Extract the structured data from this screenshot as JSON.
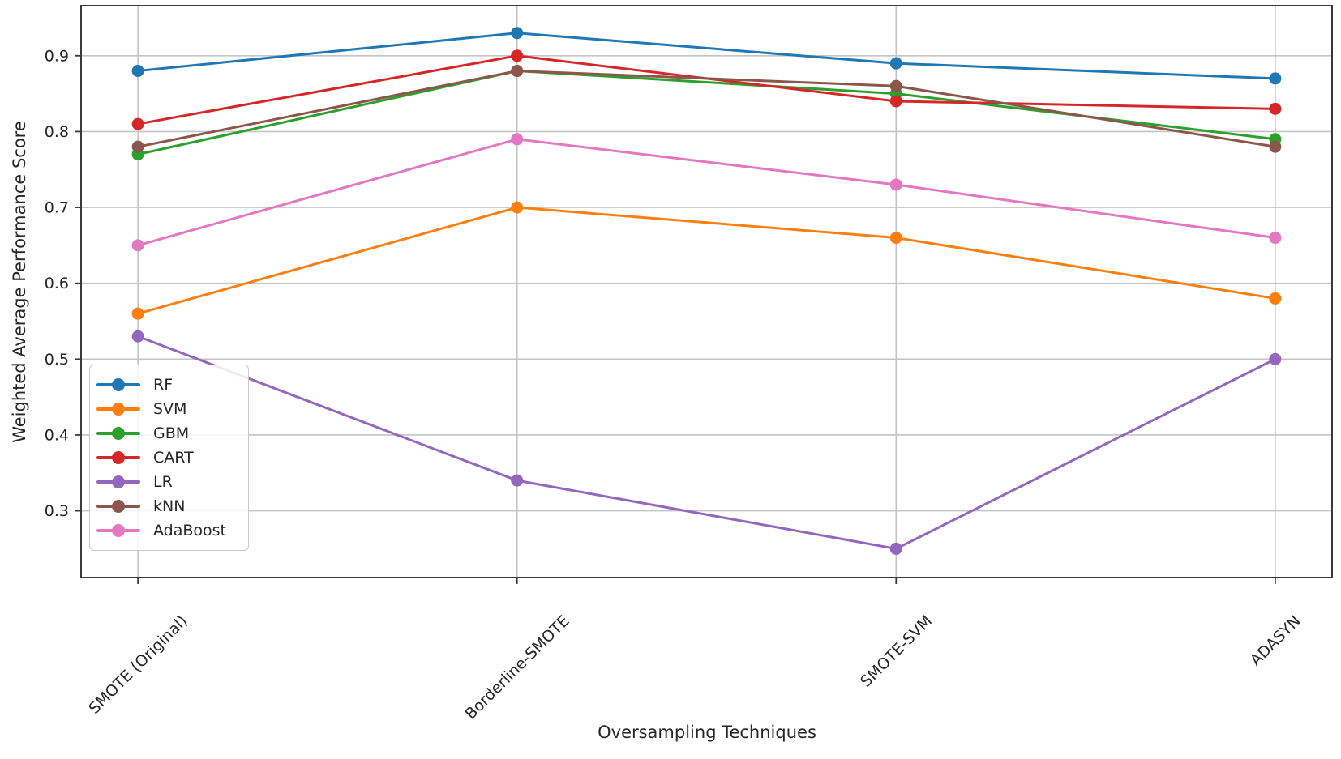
{
  "figure": {
    "background": "#ffffff",
    "text_color": "#262626",
    "grid_color": "#c4c4c4",
    "spine_color": "#3a3a3a"
  },
  "chart_data": {
    "type": "line",
    "title": "",
    "xlabel": "Oversampling Techniques",
    "ylabel": "Weighted Average Performance Score",
    "categories": [
      "SMOTE (Original)",
      "Borderline-SMOTE",
      "SMOTE-SVM",
      "ADASYN"
    ],
    "series": [
      {
        "name": "RF",
        "color": "#1f77b4",
        "values": [
          0.88,
          0.93,
          0.89,
          0.87
        ]
      },
      {
        "name": "SVM",
        "color": "#ff7f0e",
        "values": [
          0.56,
          0.7,
          0.66,
          0.58
        ]
      },
      {
        "name": "GBM",
        "color": "#2ca02c",
        "values": [
          0.77,
          0.88,
          0.85,
          0.79
        ]
      },
      {
        "name": "CART",
        "color": "#d62728",
        "values": [
          0.81,
          0.9,
          0.84,
          0.83
        ]
      },
      {
        "name": "LR",
        "color": "#9467bd",
        "values": [
          0.53,
          0.34,
          0.25,
          0.5
        ]
      },
      {
        "name": "kNN",
        "color": "#8c564b",
        "values": [
          0.78,
          0.88,
          0.86,
          0.78
        ]
      },
      {
        "name": "AdaBoost",
        "color": "#e377c2",
        "values": [
          0.65,
          0.79,
          0.73,
          0.66
        ]
      }
    ],
    "yticks": [
      0.3,
      0.4,
      0.5,
      0.6,
      0.7,
      0.8,
      0.9
    ],
    "ytick_labels": [
      "0.3",
      "0.4",
      "0.5",
      "0.6",
      "0.7",
      "0.8",
      "0.9"
    ],
    "ylim": [
      0.212,
      0.966
    ],
    "xlim": [
      -0.15,
      3.15
    ],
    "grid": true,
    "legend_position": "lower-left",
    "marker": "circle"
  }
}
